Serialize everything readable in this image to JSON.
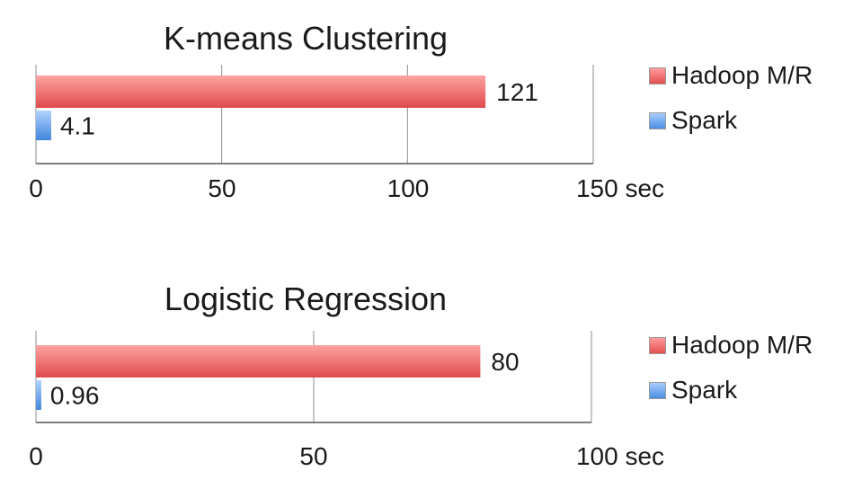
{
  "colors": {
    "hadoop": "#e8585a",
    "spark": "#5a9be6",
    "grid": "#8c8c8c"
  },
  "chart_data": [
    {
      "type": "bar",
      "orientation": "horizontal",
      "title": "K-means Clustering",
      "categories": [
        ""
      ],
      "series": [
        {
          "name": "Hadoop M/R",
          "values": [
            121
          ]
        },
        {
          "name": "Spark",
          "values": [
            4.1
          ]
        }
      ],
      "data_labels": [
        "121",
        "4.1"
      ],
      "xlim": [
        0,
        150
      ],
      "xticks": [
        "0",
        "50",
        "100",
        "150"
      ],
      "xunit": "sec",
      "grid": true,
      "legend": "right"
    },
    {
      "type": "bar",
      "orientation": "horizontal",
      "title": "Logistic Regression",
      "categories": [
        ""
      ],
      "series": [
        {
          "name": "Hadoop M/R",
          "values": [
            80
          ]
        },
        {
          "name": "Spark",
          "values": [
            0.96
          ]
        }
      ],
      "data_labels": [
        "80",
        "0.96"
      ],
      "xlim": [
        0,
        100
      ],
      "xticks": [
        "0",
        "50",
        "100"
      ],
      "xunit": "sec",
      "grid": true,
      "legend": "right"
    }
  ]
}
